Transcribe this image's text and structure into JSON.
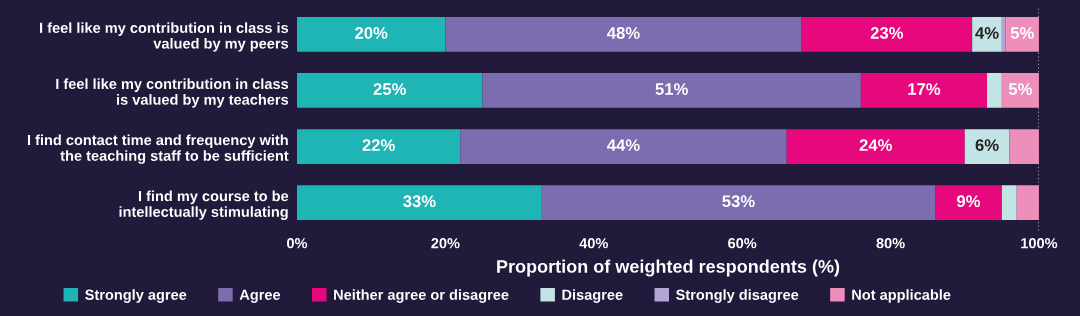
{
  "chart_data": {
    "type": "bar",
    "orientation": "horizontal",
    "stacked": true,
    "categories": [
      "I feel like my contribution in class is\nvalued by my peers",
      "I feel like my contribution in class\nis valued by my teachers",
      "I find contact time and frequency with\nthe teaching staff to be sufficient",
      "I find my course to be\nintellectually stimulating"
    ],
    "series": [
      {
        "name": "Strongly agree",
        "color": "#1fb5b5",
        "values": [
          20,
          25,
          22,
          33
        ],
        "value_labels": [
          "20%",
          "25%",
          "22%",
          "33%"
        ]
      },
      {
        "name": "Agree",
        "color": "#7b6db0",
        "values": [
          48,
          51,
          44,
          53
        ],
        "value_labels": [
          "48%",
          "51%",
          "44%",
          "53%"
        ]
      },
      {
        "name": "Neither agree or disagree",
        "color": "#e6087c",
        "values": [
          23,
          17,
          24,
          9
        ],
        "value_labels": [
          "23%",
          "17%",
          "24%",
          "9%"
        ]
      },
      {
        "name": "Disagree",
        "color": "#c3e4e4",
        "values": [
          4,
          2,
          6,
          2
        ],
        "value_labels": [
          "4%",
          null,
          "6%",
          null
        ]
      },
      {
        "name": "Strongly disagree",
        "color": "#b3a6d6",
        "values": [
          0.5,
          0,
          0,
          0
        ],
        "value_labels": [
          null,
          null,
          null,
          null
        ]
      },
      {
        "name": "Not applicable",
        "color": "#ee8fbb",
        "values": [
          4.5,
          5,
          4,
          3
        ],
        "value_labels": [
          "5%",
          "5%",
          null,
          null
        ]
      }
    ],
    "xlim": [
      0,
      100
    ],
    "xticks": [
      {
        "value": 0,
        "label": "0%"
      },
      {
        "value": 20,
        "label": "20%"
      },
      {
        "value": 40,
        "label": "40%"
      },
      {
        "value": 60,
        "label": "60%"
      },
      {
        "value": 80,
        "label": "80%"
      },
      {
        "value": 100,
        "label": "100%"
      }
    ],
    "xlabel": "Proportion of weighted respondents (%)",
    "ref_lines": [
      {
        "axis": "x",
        "value": 100,
        "label": null,
        "color": "#bbbbbb",
        "line_style": "dotted"
      }
    ],
    "legend": "bottom"
  }
}
